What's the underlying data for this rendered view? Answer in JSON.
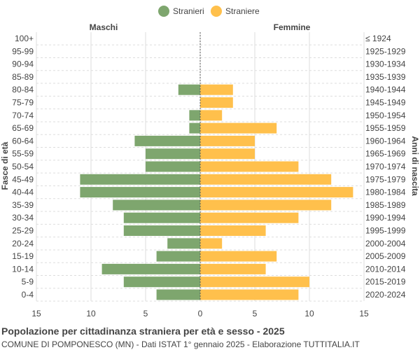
{
  "chart_data": {
    "type": "bar",
    "orientation": "horizontal-pyramid",
    "title": "Popolazione per cittadinanza straniera per età e sesso - 2025",
    "subtitle": "COMUNE DI POMPONESCO (MN) - Dati ISTAT 1° gennaio 2025 - Elaborazione TUTTITALIA.IT",
    "left_header": "Maschi",
    "right_header": "Femmine",
    "ylabel_left": "Fasce di età",
    "ylabel_right": "Anni di nascita",
    "xlim": [
      -15,
      15
    ],
    "xticks": [
      "15",
      "10",
      "5",
      "0",
      "5",
      "10",
      "15"
    ],
    "grid": true,
    "legend_placement": "top-center",
    "categories": [
      "100+",
      "95-99",
      "90-94",
      "85-89",
      "80-84",
      "75-79",
      "70-74",
      "65-69",
      "60-64",
      "55-59",
      "50-54",
      "45-49",
      "40-44",
      "35-39",
      "30-34",
      "25-29",
      "20-24",
      "15-19",
      "10-14",
      "5-9",
      "0-4"
    ],
    "birth_years": [
      "≤ 1924",
      "1925-1929",
      "1930-1934",
      "1935-1939",
      "1940-1944",
      "1945-1949",
      "1950-1954",
      "1955-1959",
      "1960-1964",
      "1965-1969",
      "1970-1974",
      "1975-1979",
      "1980-1984",
      "1985-1989",
      "1990-1994",
      "1995-1999",
      "2000-2004",
      "2005-2009",
      "2010-2014",
      "2015-2019",
      "2020-2024"
    ],
    "series": [
      {
        "name": "Stranieri",
        "color": "#7ea66e",
        "values": [
          0,
          0,
          0,
          0,
          2,
          0,
          1,
          1,
          6,
          5,
          5,
          11,
          11,
          8,
          7,
          7,
          3,
          4,
          9,
          7,
          4
        ]
      },
      {
        "name": "Straniere",
        "color": "#ffc04c",
        "values": [
          0,
          0,
          0,
          0,
          3,
          3,
          2,
          7,
          5,
          5,
          9,
          12,
          14,
          12,
          9,
          6,
          2,
          7,
          6,
          10,
          9
        ]
      }
    ]
  }
}
